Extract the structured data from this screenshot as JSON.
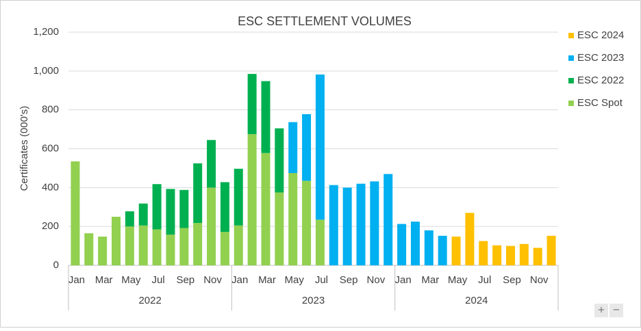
{
  "chart_data": {
    "type": "stacked_bar",
    "title": "ESC SETTLEMENT VOLUMES",
    "y_label": "Certificates (000's)",
    "categories": [
      "Jan",
      null,
      "Mar",
      null,
      "May",
      null,
      "Jul",
      null,
      "Sep",
      null,
      "Nov",
      null,
      "Jan",
      null,
      "Mar",
      null,
      "May",
      null,
      "Jul",
      null,
      "Sep",
      null,
      "Nov",
      null,
      "Jan",
      null,
      "Mar",
      null,
      "May",
      null,
      "Jul",
      null,
      "Sep",
      null,
      "Nov",
      null
    ],
    "years": [
      "2022",
      "2023",
      "2024"
    ],
    "series": [
      {
        "name": "ESC 2024",
        "color": "#ffc000",
        "values": [
          null,
          null,
          null,
          null,
          null,
          null,
          null,
          null,
          null,
          null,
          null,
          null,
          null,
          null,
          null,
          null,
          null,
          null,
          null,
          null,
          null,
          null,
          null,
          null,
          null,
          null,
          null,
          null,
          148,
          270,
          125,
          103,
          100,
          110,
          90,
          152
        ]
      },
      {
        "name": "ESC 2023",
        "color": "#00b0f0",
        "values": [
          null,
          null,
          null,
          null,
          null,
          null,
          null,
          null,
          null,
          null,
          null,
          null,
          null,
          null,
          null,
          null,
          262,
          343,
          747,
          413,
          400,
          420,
          432,
          470,
          213,
          225,
          180,
          152,
          null,
          null,
          null,
          null,
          null,
          null,
          null,
          null
        ]
      },
      {
        "name": "ESC 2022",
        "color": "#00b050",
        "values": [
          null,
          null,
          null,
          null,
          78,
          113,
          233,
          235,
          196,
          307,
          245,
          256,
          292,
          310,
          370,
          330,
          null,
          null,
          null,
          null,
          null,
          null,
          null,
          null,
          null,
          null,
          null,
          null,
          null,
          null,
          null,
          null,
          null,
          null,
          null,
          null
        ]
      },
      {
        "name": "ESC Spot",
        "color": "#92d050",
        "values": [
          535,
          165,
          148,
          250,
          200,
          205,
          185,
          158,
          192,
          218,
          400,
          172,
          205,
          675,
          578,
          375,
          475,
          435,
          235,
          null,
          null,
          null,
          null,
          null,
          null,
          null,
          null,
          null,
          null,
          null,
          null,
          null,
          null,
          null,
          null,
          null
        ]
      }
    ],
    "ylim": [
      0,
      1200
    ],
    "yticks": [
      0,
      200,
      400,
      600,
      800,
      {
        "value": 1000,
        "label": "1,000"
      },
      {
        "value": 1200,
        "label": "1,200"
      }
    ],
    "grid": true,
    "legend": "right"
  },
  "controls": [
    "+",
    "−"
  ]
}
